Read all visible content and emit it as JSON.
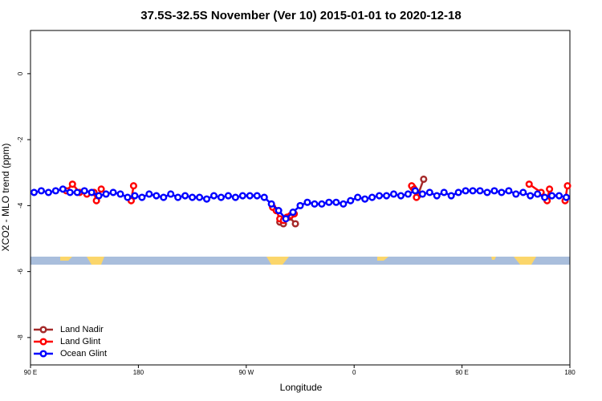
{
  "chart_data": {
    "type": "line",
    "title": "37.5S-32.5S November (Ver 10)   2015-01-01 to 2020-12-18",
    "x_label": "Longitude",
    "y_label": "XCO2 - MLO trend (ppm)",
    "xlim": [
      90,
      540
    ],
    "ylim": [
      -8.83,
      1.31
    ],
    "xticks": [
      {
        "value": 90,
        "label": "90 E"
      },
      {
        "value": 180,
        "label": "180"
      },
      {
        "value": 270,
        "label": "90 W"
      },
      {
        "value": 360,
        "label": "0"
      },
      {
        "value": 450,
        "label": "90 E"
      },
      {
        "value": 540,
        "label": "180"
      }
    ],
    "yticks": [
      0,
      -2,
      -4,
      -6,
      -8
    ],
    "legend": "bottom-left",
    "series": [
      {
        "name": "Land Nadir",
        "color": "#a52a2a",
        "x": [
          298,
          301,
          306,
          311,
          null,
          409,
          413,
          418
        ],
        "values": [
          -4.5,
          -4.55,
          -4.35,
          -4.55,
          null,
          -3.45,
          -3.7,
          -3.2
        ]
      },
      {
        "name": "Land Glint",
        "color": "#ff0000",
        "x": [
          120,
          125,
          131,
          137,
          143,
          145,
          149,
          null,
          174,
          176,
          null,
          292,
          295,
          298,
          301,
          304,
          307,
          310,
          null,
          408,
          410,
          412,
          null,
          506,
          516,
          521,
          523,
          null,
          536,
          538
        ],
        "values": [
          -3.55,
          -3.35,
          -3.6,
          -3.65,
          -3.6,
          -3.85,
          -3.5,
          null,
          -3.85,
          -3.4,
          null,
          -4.05,
          -4.15,
          -4.4,
          -4.45,
          -4.35,
          -4.3,
          -4.25,
          null,
          -3.4,
          -3.5,
          -3.75,
          null,
          -3.35,
          -3.6,
          -3.85,
          -3.5,
          null,
          -3.85,
          -3.4
        ]
      },
      {
        "name": "Ocean Glint",
        "color": "#0000ff",
        "x": [
          93,
          99,
          105,
          111,
          117,
          123,
          129,
          135,
          141,
          147,
          153,
          159,
          165,
          171,
          177,
          183,
          189,
          195,
          201,
          207,
          213,
          219,
          225,
          231,
          237,
          243,
          249,
          255,
          261,
          267,
          273,
          279,
          285,
          291,
          297,
          303,
          309,
          315,
          321,
          327,
          333,
          339,
          345,
          351,
          357,
          363,
          369,
          375,
          381,
          387,
          393,
          399,
          405,
          411,
          417,
          423,
          429,
          435,
          441,
          447,
          453,
          459,
          465,
          471,
          477,
          483,
          489,
          495,
          501,
          507,
          513,
          519,
          525,
          531,
          537
        ],
        "values": [
          -3.6,
          -3.55,
          -3.6,
          -3.55,
          -3.5,
          -3.6,
          -3.6,
          -3.55,
          -3.6,
          -3.7,
          -3.65,
          -3.6,
          -3.65,
          -3.75,
          -3.7,
          -3.75,
          -3.65,
          -3.7,
          -3.75,
          -3.65,
          -3.75,
          -3.7,
          -3.75,
          -3.75,
          -3.8,
          -3.7,
          -3.75,
          -3.7,
          -3.75,
          -3.7,
          -3.7,
          -3.7,
          -3.75,
          -3.95,
          -4.15,
          -4.4,
          -4.2,
          -4.0,
          -3.9,
          -3.95,
          -3.95,
          -3.9,
          -3.9,
          -3.95,
          -3.85,
          -3.75,
          -3.8,
          -3.75,
          -3.7,
          -3.7,
          -3.65,
          -3.7,
          -3.65,
          -3.55,
          -3.65,
          -3.6,
          -3.7,
          -3.6,
          -3.7,
          -3.6,
          -3.55,
          -3.55,
          -3.55,
          -3.6,
          -3.55,
          -3.6,
          -3.55,
          -3.65,
          -3.6,
          -3.7,
          -3.65,
          -3.75,
          -3.7,
          -3.7,
          -3.75
        ]
      }
    ]
  }
}
